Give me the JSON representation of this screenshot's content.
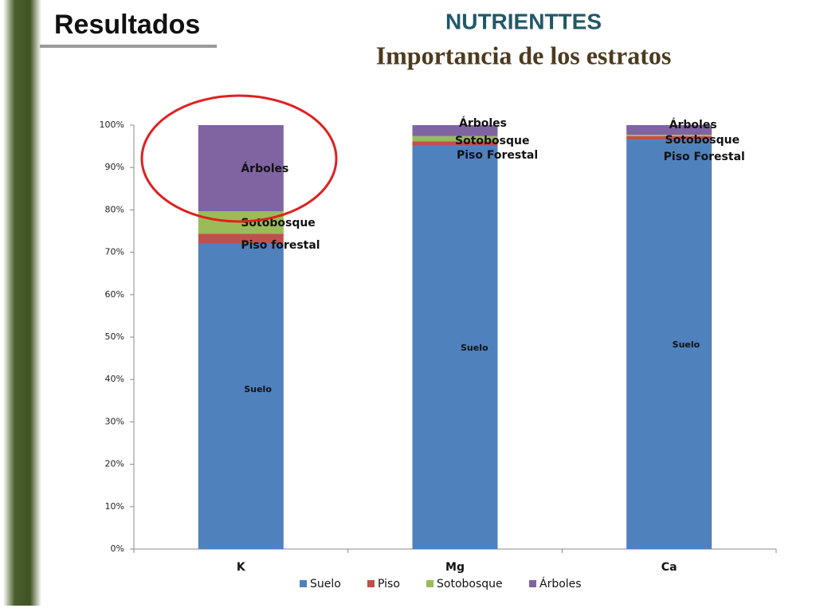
{
  "header": {
    "title": "Resultados"
  },
  "chart_data": {
    "type": "stacked_bar",
    "title": "NUTRIENTTES",
    "subtitle": "Importancia de los estratos",
    "categories": [
      "K",
      "Mg",
      "Ca"
    ],
    "series": [
      {
        "name": "Suelo",
        "color": "#4f81bd",
        "values": [
          72.0,
          95.1,
          96.6
        ]
      },
      {
        "name": "Piso",
        "color": "#c0504d",
        "values": [
          2.4,
          1.1,
          0.8
        ]
      },
      {
        "name": "Sotobosque",
        "color": "#9bbb59",
        "values": [
          5.3,
          1.2,
          0.3
        ]
      },
      {
        "name": "Árboles",
        "color": "#8064a2",
        "values": [
          20.3,
          2.6,
          2.3
        ]
      }
    ],
    "annotations": [
      [
        "Suelo",
        "Piso forestal",
        "Sotobosque",
        "Árboles"
      ],
      [
        "Suelo",
        "Piso Forestal",
        "Sotobosque",
        "Árboles"
      ],
      [
        "Suelo",
        "Piso Forestal",
        "Sotobosque",
        "Árboles"
      ]
    ],
    "ylim": [
      0,
      100
    ],
    "yticks": [
      {
        "value": 0,
        "label": "0%"
      },
      {
        "value": 10,
        "label": "10%"
      },
      {
        "value": 20,
        "label": "20%"
      },
      {
        "value": 30,
        "label": "30%"
      },
      {
        "value": 40,
        "label": "40%"
      },
      {
        "value": 50,
        "label": "50%"
      },
      {
        "value": 60,
        "label": "60%"
      },
      {
        "value": 70,
        "label": "70%"
      },
      {
        "value": 80,
        "label": "80%"
      },
      {
        "value": 90,
        "label": "90%"
      },
      {
        "value": 100,
        "label": "100%"
      }
    ],
    "grid": false,
    "legend": "bottom"
  }
}
